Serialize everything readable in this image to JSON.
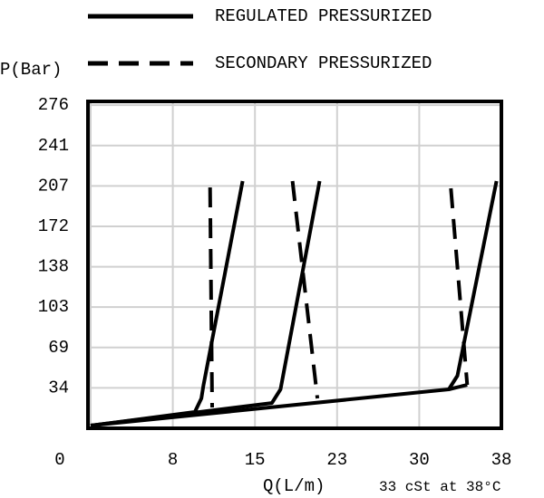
{
  "chart_data": {
    "type": "line",
    "y_label": "P(Bar)",
    "x_label": "Q(L/m)",
    "annotation": "33 cSt at 38°C",
    "xlim": [
      0,
      37.85
    ],
    "ylim": [
      0,
      279
    ],
    "xticks": [
      {
        "value": 0,
        "label": "0"
      },
      {
        "value": 7.57,
        "label": "8"
      },
      {
        "value": 15.14,
        "label": "15"
      },
      {
        "value": 22.71,
        "label": "23"
      },
      {
        "value": 30.28,
        "label": "30"
      },
      {
        "value": 37.85,
        "label": "38"
      }
    ],
    "yticks": [
      {
        "value": 34.47,
        "label": "34"
      },
      {
        "value": 68.95,
        "label": "69"
      },
      {
        "value": 103.42,
        "label": "103"
      },
      {
        "value": 137.9,
        "label": "138"
      },
      {
        "value": 172.37,
        "label": "172"
      },
      {
        "value": 206.84,
        "label": "207"
      },
      {
        "value": 241.32,
        "label": "241"
      },
      {
        "value": 275.79,
        "label": "276"
      }
    ],
    "grid": true,
    "series": [
      {
        "name": "REGULATED PRESSURIZED",
        "color": "#000000",
        "dashed": false,
        "curves": [
          {
            "x": [
              0,
              9.6,
              10.2,
              10.4,
              14.0
            ],
            "values": [
              2.3,
              13.9,
              25.5,
              37,
              211
            ]
          },
          {
            "x": [
              0,
              16.7,
              17.5,
              21.1
            ],
            "values": [
              2.3,
              21.6,
              33.2,
              211
            ]
          },
          {
            "x": [
              0,
              33.0,
              33.8,
              37.4
            ],
            "values": [
              2.3,
              33.2,
              44.8,
              211
            ]
          },
          {
            "x": [
              33.0,
              34.7
            ],
            "values": [
              33.2,
              37
            ]
          }
        ]
      },
      {
        "name": "SECONDARY PRESSURIZED",
        "color": "#000000",
        "dashed": true,
        "curves": [
          {
            "x": [
              11.0,
              11.2
            ],
            "values": [
              205.6,
              17.8
            ]
          },
          {
            "x": [
              18.6,
              20.9
            ],
            "values": [
              211,
              25.5
            ]
          },
          {
            "x": [
              33.2,
              34.7
            ],
            "values": [
              204.8,
              37
            ]
          }
        ]
      }
    ]
  }
}
